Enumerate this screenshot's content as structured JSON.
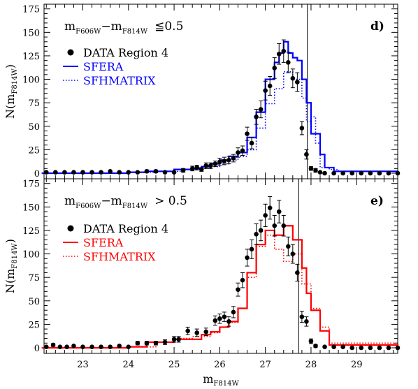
{
  "chart_data": [
    {
      "type": "line",
      "panel_label": "d)",
      "color_condition": "≦0.5",
      "xlabel": "m_F814W",
      "ylabel": "N(m_F814W)",
      "xlim": [
        22.15,
        29.9
      ],
      "ylim": [
        0,
        180
      ],
      "yticks": [
        0,
        25,
        50,
        75,
        100,
        125,
        150,
        175
      ],
      "vline_x": 27.92,
      "legend": [
        {
          "label": "DATA Region 4",
          "color": "#000000",
          "style": "points"
        },
        {
          "label": "SFERA",
          "color": "#0000ff",
          "style": "solid"
        },
        {
          "label": "SFHMATRIX",
          "color": "#0000ff",
          "style": "dotted"
        }
      ],
      "data": {
        "x": [
          22.2,
          22.4,
          22.6,
          22.8,
          23.0,
          23.2,
          23.4,
          23.6,
          23.8,
          24.0,
          24.2,
          24.4,
          24.6,
          24.8,
          25.0,
          25.2,
          25.4,
          25.5,
          25.6,
          25.7,
          25.8,
          25.9,
          26.0,
          26.1,
          26.2,
          26.3,
          26.4,
          26.5,
          26.6,
          26.7,
          26.8,
          26.9,
          27.0,
          27.1,
          27.2,
          27.3,
          27.4,
          27.5,
          27.6,
          27.7,
          27.8,
          27.9,
          28.0,
          28.1,
          28.2,
          28.3,
          28.5,
          28.7,
          28.9,
          29.1,
          29.3,
          29.5,
          29.7,
          29.9
        ],
        "y": [
          1,
          1,
          1,
          1,
          1,
          1,
          1,
          2,
          1,
          1,
          1,
          2,
          2,
          1,
          1,
          3,
          5,
          6,
          4,
          8,
          8,
          10,
          12,
          13,
          14,
          16,
          22,
          24,
          42,
          32,
          60,
          68,
          88,
          93,
          112,
          127,
          130,
          118,
          101,
          97,
          48,
          20,
          5,
          3,
          1,
          0,
          0,
          0,
          0,
          0,
          0,
          0,
          0,
          0
        ],
        "yerr": [
          1,
          1,
          1,
          1,
          1,
          1,
          1,
          1,
          1,
          1,
          1,
          1.5,
          1.5,
          1,
          1,
          2,
          2.5,
          2.5,
          2,
          3,
          3,
          3,
          4,
          4,
          4,
          4,
          5,
          5,
          7,
          6,
          8,
          9,
          10,
          10,
          11,
          11,
          12,
          11,
          10,
          10,
          7,
          5,
          2,
          2,
          1,
          1,
          1,
          1,
          1,
          1,
          1,
          1,
          1,
          1
        ]
      },
      "series": [
        {
          "name": "SFERA",
          "color": "#0000ff",
          "style": "solid",
          "x": [
            22.1,
            24.0,
            24.4,
            25.0,
            25.4,
            25.6,
            25.8,
            26.0,
            26.2,
            26.4,
            26.6,
            26.8,
            27.0,
            27.2,
            27.3,
            27.4,
            27.5,
            27.6,
            27.7,
            27.8,
            27.9,
            28.0,
            28.2,
            28.3,
            28.5,
            29.9
          ],
          "y": [
            0,
            1,
            2,
            4,
            5,
            7,
            10,
            14,
            18,
            22,
            38,
            65,
            100,
            118,
            128,
            140,
            128,
            123,
            120,
            100,
            75,
            42,
            20,
            6,
            2,
            0
          ]
        },
        {
          "name": "SFHMATRIX",
          "color": "#0000ff",
          "style": "dotted",
          "x": [
            22.1,
            24.0,
            24.6,
            25.2,
            25.6,
            25.8,
            26.0,
            26.2,
            26.4,
            26.6,
            26.8,
            27.0,
            27.2,
            27.4,
            27.6,
            27.8,
            27.9,
            28.0,
            28.1,
            28.2,
            28.4,
            28.6,
            29.9
          ],
          "y": [
            0,
            1,
            2,
            4,
            5,
            7,
            10,
            14,
            18,
            25,
            48,
            74,
            90,
            108,
            100,
            80,
            55,
            60,
            32,
            6,
            4,
            2,
            0
          ]
        }
      ]
    },
    {
      "type": "line",
      "panel_label": "e)",
      "color_condition": "> 0.5",
      "xlabel": "m_F814W",
      "ylabel": "N(m_F814W)",
      "xlim": [
        22.15,
        29.9
      ],
      "ylim": [
        0,
        180
      ],
      "yticks": [
        0,
        25,
        50,
        75,
        100,
        125,
        150,
        175
      ],
      "xticks": [
        23,
        24,
        25,
        26,
        27,
        28,
        29
      ],
      "vline_x": 27.73,
      "legend": [
        {
          "label": "DATA Region 4",
          "color": "#000000",
          "style": "points"
        },
        {
          "label": "SFERA",
          "color": "#ff0000",
          "style": "solid"
        },
        {
          "label": "SFHMATRIX",
          "color": "#ff0000",
          "style": "dotted"
        }
      ],
      "data": {
        "x": [
          22.2,
          22.35,
          22.5,
          22.65,
          22.8,
          23.0,
          23.2,
          23.4,
          23.6,
          23.8,
          24.0,
          24.2,
          24.4,
          24.6,
          24.8,
          25.0,
          25.1,
          25.3,
          25.5,
          25.7,
          25.9,
          26.0,
          26.1,
          26.2,
          26.3,
          26.4,
          26.5,
          26.6,
          26.7,
          26.8,
          26.9,
          27.0,
          27.1,
          27.2,
          27.3,
          27.4,
          27.5,
          27.6,
          27.7,
          27.8,
          27.9,
          28.0,
          28.1,
          28.3,
          28.5,
          28.7,
          28.9,
          29.1,
          29.3,
          29.5,
          29.7,
          29.9
        ],
        "y": [
          1,
          3,
          1,
          1,
          2,
          1,
          1,
          1,
          1,
          2,
          1,
          5,
          5,
          5,
          6,
          9,
          9,
          18,
          16,
          17,
          29,
          31,
          33,
          28,
          38,
          62,
          72,
          96,
          105,
          121,
          125,
          141,
          149,
          130,
          145,
          130,
          108,
          100,
          80,
          33,
          28,
          7,
          2,
          1,
          1,
          1,
          0,
          0,
          0,
          0,
          0,
          0
        ],
        "yerr": [
          1,
          1.5,
          1,
          1,
          1,
          1,
          1,
          1,
          1,
          1,
          1,
          2,
          2,
          2,
          2.5,
          3,
          3,
          4,
          4,
          4,
          5,
          5,
          5,
          5,
          6,
          7,
          8,
          9,
          10,
          11,
          11,
          12,
          12,
          11,
          12,
          11,
          10,
          10,
          9,
          6,
          5,
          2.5,
          1.5,
          1,
          1,
          1,
          1,
          1,
          1,
          1,
          1,
          1
        ]
      },
      "series": [
        {
          "name": "SFERA",
          "color": "#ff0000",
          "style": "solid",
          "x": [
            22.1,
            24.0,
            24.4,
            25.0,
            25.6,
            25.8,
            26.0,
            26.2,
            26.4,
            26.6,
            26.8,
            27.0,
            27.2,
            27.4,
            27.6,
            27.8,
            27.9,
            28.0,
            28.2,
            28.4,
            29.9
          ],
          "y": [
            0,
            1,
            6,
            9,
            14,
            17,
            22,
            28,
            42,
            80,
            110,
            125,
            120,
            130,
            115,
            85,
            58,
            40,
            18,
            3,
            0
          ]
        },
        {
          "name": "SFHMATRIX",
          "color": "#ff0000",
          "style": "dotted",
          "x": [
            22.1,
            24.0,
            24.6,
            25.0,
            25.4,
            25.8,
            26.0,
            26.2,
            26.4,
            26.6,
            26.8,
            27.0,
            27.2,
            27.4,
            27.6,
            27.8,
            28.0,
            28.2,
            28.4,
            29.9
          ],
          "y": [
            0,
            1,
            6,
            10,
            12,
            16,
            22,
            27,
            42,
            75,
            108,
            120,
            105,
            92,
            100,
            68,
            42,
            22,
            5,
            0
          ]
        }
      ]
    }
  ],
  "panels": [
    {
      "cond_prefix": "m",
      "cond_sub1": "F606W",
      "cond_mid": "−m",
      "cond_sub2": "F814W",
      "cond_op": "≦0.5",
      "label": "d)",
      "legend_data": "DATA Region 4",
      "legend_sfera": "SFERA",
      "legend_sfh": "SFHMATRIX"
    },
    {
      "cond_prefix": "m",
      "cond_sub1": "F606W",
      "cond_mid": "−m",
      "cond_sub2": "F814W",
      "cond_op": "> 0.5",
      "label": "e)",
      "legend_data": "DATA Region 4",
      "legend_sfera": "SFERA",
      "legend_sfh": "SFHMATRIX"
    }
  ],
  "axes": {
    "ylabel_main": "N(m",
    "ylabel_sub": "F814W",
    "ylabel_close": ")",
    "xlabel_main": "m",
    "xlabel_sub": "F814W",
    "yticks": [
      "0",
      "25",
      "50",
      "75",
      "100",
      "125",
      "150",
      "175"
    ],
    "xticks": [
      "23",
      "24",
      "25",
      "26",
      "27",
      "28",
      "29"
    ]
  }
}
